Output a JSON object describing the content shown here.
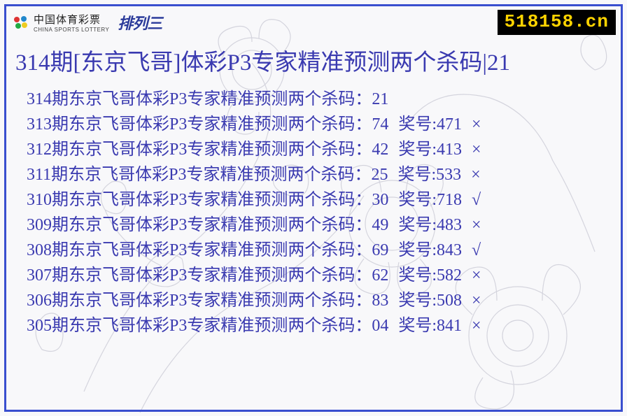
{
  "colors": {
    "border": "#3a4fcf",
    "text_primary": "#3a3ab0",
    "url_bg": "#000000",
    "url_fg": "#ffd400",
    "bg": "#f8f8fa"
  },
  "logo": {
    "cn": "中国体育彩票",
    "en": "CHINA SPORTS LOTTERY",
    "suffix": "排列三"
  },
  "url": "518158.cn",
  "title": "314期[东京飞哥]体彩P3专家精准预测两个杀码|21",
  "rows": [
    {
      "main": "314期东京飞哥体彩P3专家精准预测两个杀码：21",
      "award": "",
      "mark": ""
    },
    {
      "main": "313期东京飞哥体彩P3专家精准预测两个杀码：74",
      "award": "奖号:471",
      "mark": "×"
    },
    {
      "main": "312期东京飞哥体彩P3专家精准预测两个杀码：42",
      "award": "奖号:413",
      "mark": "×"
    },
    {
      "main": "311期东京飞哥体彩P3专家精准预测两个杀码：25",
      "award": "奖号:533",
      "mark": "×"
    },
    {
      "main": "310期东京飞哥体彩P3专家精准预测两个杀码：30",
      "award": "奖号:718",
      "mark": "√"
    },
    {
      "main": "309期东京飞哥体彩P3专家精准预测两个杀码：49",
      "award": "奖号:483",
      "mark": "×"
    },
    {
      "main": "308期东京飞哥体彩P3专家精准预测两个杀码：69",
      "award": "奖号:843",
      "mark": "√"
    },
    {
      "main": "307期东京飞哥体彩P3专家精准预测两个杀码：62",
      "award": "奖号:582",
      "mark": "×"
    },
    {
      "main": "306期东京飞哥体彩P3专家精准预测两个杀码：83",
      "award": "奖号:508",
      "mark": "×"
    },
    {
      "main": "305期东京飞哥体彩P3专家精准预测两个杀码：04",
      "award": "奖号:841",
      "mark": "×"
    }
  ],
  "typography": {
    "title_fontsize": 33,
    "row_fontsize": 24,
    "row_lineheight": 36,
    "url_fontsize": 26
  }
}
